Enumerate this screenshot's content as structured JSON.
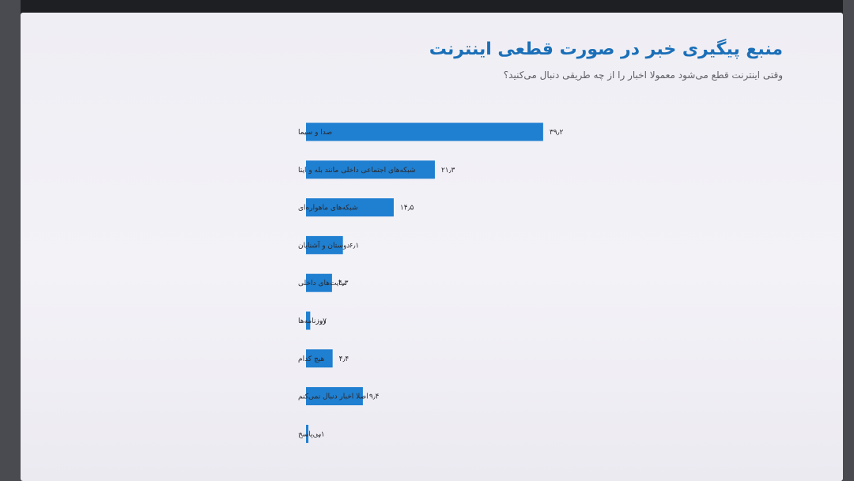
{
  "chart_data": {
    "type": "bar",
    "orientation": "horizontal",
    "title": "منبع پیگیری خبر در صورت قطعی اینترنت",
    "subtitle": "وقتی اینترنت قطع می‌شود معمولا اخبار را از چه طریقی دنبال می‌کنید؟",
    "categories": [
      "صدا و سیما",
      "شبکه‌های اجتماعی داخلی مانند بله و ایتا",
      "شبکه‌های ماهواره‌ای",
      "دوستان و آشنایان",
      "سایت‌های داخلی",
      "روزنامه‌ها",
      "هیچ کدام",
      "اصلا اخبار دنبال نمی‌کنم",
      "بی‌پاسخ"
    ],
    "values": [
      39.2,
      21.3,
      14.5,
      6.1,
      4.3,
      0.7,
      4.4,
      9.4,
      0.1
    ],
    "value_labels": [
      "۳۹٫۲",
      "۲۱٫۳",
      "۱۴٫۵",
      "۶٫۱",
      "۴٫۳",
      "۰٫۷",
      "۴٫۴",
      "۹٫۴",
      "۰٫۱"
    ],
    "bar_color": "#1f7fd0",
    "grid": false,
    "legend": "none"
  },
  "colors": {
    "title": "#1a6fb8",
    "background": "#f1f0f5"
  }
}
